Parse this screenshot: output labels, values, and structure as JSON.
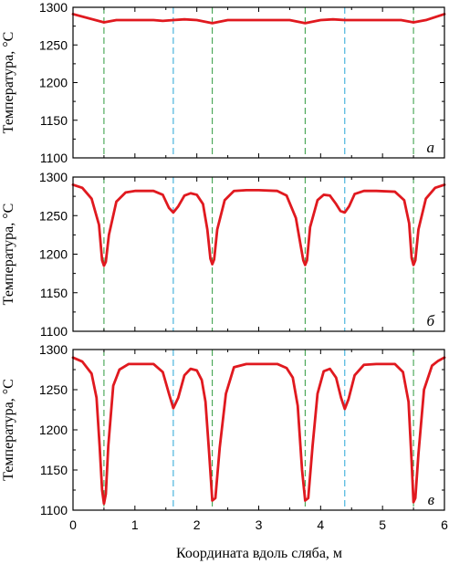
{
  "chart_data": {
    "type": "line",
    "xlabel": "Координата вдоль сляба, м",
    "xlim": [
      0,
      6
    ],
    "xticks": [
      "0",
      "1",
      "2",
      "3",
      "4",
      "5",
      "6"
    ],
    "ylim": [
      1100,
      1300
    ],
    "yticks": [
      "1100",
      "1150",
      "1200",
      "1250",
      "1300"
    ],
    "grid": false,
    "series_color": "#e0191f",
    "guide_lines": {
      "green_dashed_x": [
        0.5,
        2.25,
        3.75,
        5.5
      ],
      "blue_dashed_x": [
        1.62,
        4.39
      ],
      "green_color": "#2e9a3e",
      "blue_color": "#26a6d6"
    },
    "panels": [
      {
        "letter": "а",
        "ylabel": "Температура, °С",
        "x": [
          0,
          0.5,
          0.7,
          1.3,
          1.45,
          1.62,
          1.8,
          2.0,
          2.25,
          2.5,
          3.0,
          3.5,
          3.75,
          4.0,
          4.2,
          4.39,
          4.55,
          5.0,
          5.3,
          5.5,
          5.7,
          6.0
        ],
        "y": [
          1291,
          1280,
          1283,
          1283,
          1282,
          1283,
          1284,
          1283,
          1279,
          1283,
          1283,
          1283,
          1279,
          1283,
          1284,
          1283,
          1283,
          1283,
          1283,
          1280,
          1283,
          1291
        ]
      },
      {
        "letter": "б",
        "ylabel": "Температура, °С",
        "x": [
          0,
          0.15,
          0.3,
          0.42,
          0.47,
          0.5,
          0.53,
          0.58,
          0.7,
          0.85,
          1.0,
          1.3,
          1.45,
          1.55,
          1.62,
          1.7,
          1.8,
          1.9,
          2.0,
          2.1,
          2.17,
          2.22,
          2.25,
          2.28,
          2.33,
          2.45,
          2.6,
          2.8,
          3.0,
          3.3,
          3.45,
          3.6,
          3.68,
          3.72,
          3.75,
          3.78,
          3.83,
          3.95,
          4.05,
          4.15,
          4.25,
          4.32,
          4.39,
          4.46,
          4.55,
          4.7,
          4.9,
          5.2,
          5.35,
          5.43,
          5.47,
          5.5,
          5.53,
          5.58,
          5.7,
          5.85,
          6.0
        ],
        "y": [
          1290,
          1286,
          1272,
          1238,
          1192,
          1185,
          1190,
          1225,
          1268,
          1280,
          1282,
          1282,
          1277,
          1260,
          1254,
          1262,
          1276,
          1279,
          1277,
          1265,
          1232,
          1194,
          1187,
          1193,
          1232,
          1270,
          1282,
          1283,
          1283,
          1282,
          1276,
          1247,
          1210,
          1192,
          1186,
          1192,
          1235,
          1270,
          1277,
          1276,
          1265,
          1256,
          1254,
          1262,
          1278,
          1282,
          1282,
          1281,
          1270,
          1240,
          1195,
          1186,
          1192,
          1232,
          1272,
          1286,
          1290
        ]
      },
      {
        "letter": "в",
        "ylabel": "Температура, °С",
        "x": [
          0,
          0.15,
          0.3,
          0.38,
          0.43,
          0.47,
          0.5,
          0.53,
          0.57,
          0.65,
          0.75,
          0.9,
          1.0,
          1.3,
          1.45,
          1.55,
          1.62,
          1.7,
          1.8,
          1.9,
          2.0,
          2.08,
          2.14,
          2.2,
          2.25,
          2.3,
          2.37,
          2.47,
          2.6,
          2.8,
          3.0,
          3.3,
          3.45,
          3.55,
          3.63,
          3.7,
          3.75,
          3.8,
          3.87,
          3.95,
          4.05,
          4.15,
          4.25,
          4.33,
          4.39,
          4.45,
          4.55,
          4.7,
          4.9,
          5.2,
          5.33,
          5.42,
          5.47,
          5.5,
          5.53,
          5.58,
          5.67,
          5.8,
          5.9,
          6.0
        ],
        "y": [
          1290,
          1285,
          1270,
          1240,
          1180,
          1125,
          1108,
          1120,
          1180,
          1255,
          1275,
          1282,
          1282,
          1282,
          1272,
          1245,
          1227,
          1240,
          1268,
          1276,
          1274,
          1262,
          1235,
          1170,
          1112,
          1115,
          1178,
          1245,
          1278,
          1282,
          1282,
          1282,
          1277,
          1265,
          1230,
          1150,
          1112,
          1115,
          1180,
          1245,
          1273,
          1276,
          1265,
          1240,
          1226,
          1238,
          1268,
          1281,
          1282,
          1282,
          1272,
          1235,
          1160,
          1110,
          1115,
          1170,
          1250,
          1280,
          1286,
          1290
        ]
      }
    ]
  }
}
